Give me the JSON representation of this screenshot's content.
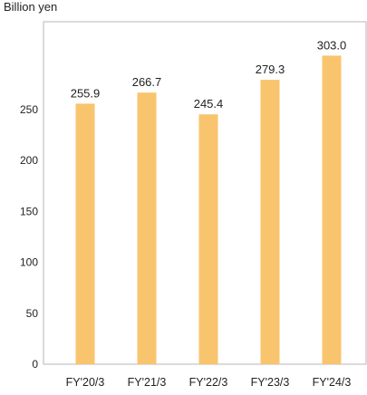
{
  "chart_data": {
    "type": "bar",
    "unit_label": "Billion yen",
    "categories": [
      "FY'20/3",
      "FY'21/3",
      "FY'22/3",
      "FY'23/3",
      "FY'24/3"
    ],
    "values": [
      255.9,
      266.7,
      245.4,
      279.3,
      303.0
    ],
    "value_labels": [
      "255.9",
      "266.7",
      "245.4",
      "279.3",
      "303.0"
    ],
    "y_ticks": [
      0,
      50,
      100,
      150,
      200,
      250
    ],
    "ylim": [
      0,
      335
    ],
    "grid": false,
    "bar_color": "#f9c46e",
    "frame_color": "#b7b7b7"
  }
}
